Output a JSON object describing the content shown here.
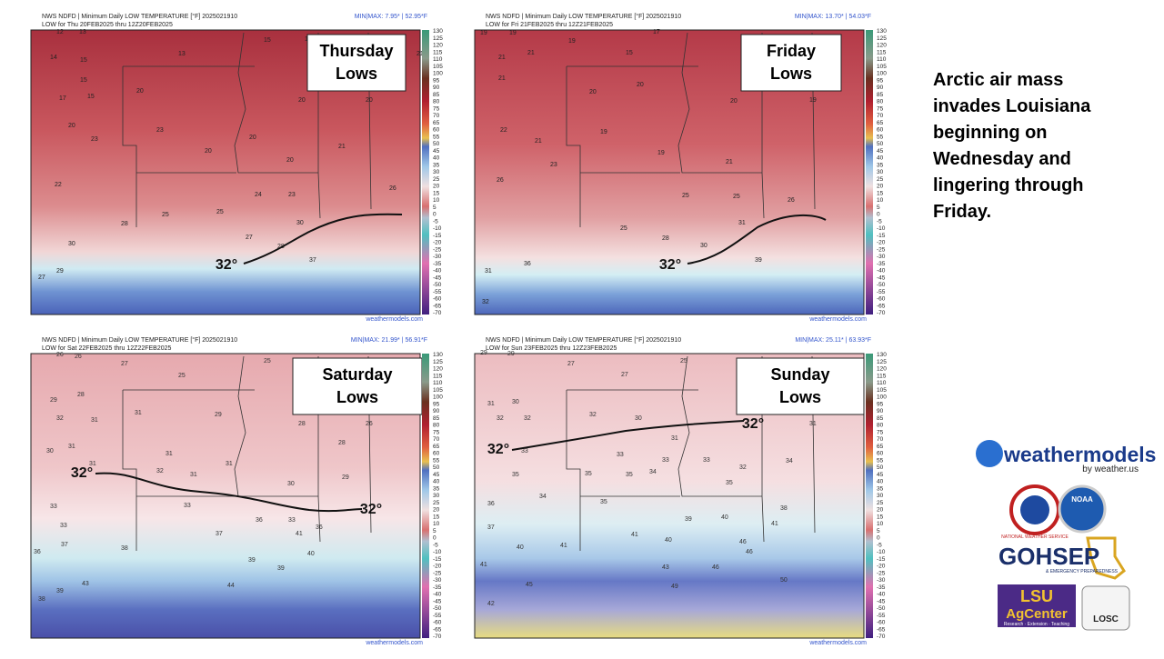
{
  "panels": [
    {
      "header": "NWS NDFD | Minimum Daily LOW TEMPERATURE [°F] 2025021910",
      "subheader": "LOW for Thu 20FEB2025 thru 12Z20FEB2025",
      "minmax": "MIN|MAX: 7.95* | 52.95*F",
      "title": [
        "Thursday",
        "Lows"
      ],
      "contour_labels": [
        "32°"
      ],
      "footer": "weathermodels.com",
      "stations": [
        12,
        13,
        14,
        15,
        15,
        17,
        15,
        13,
        15,
        17,
        21,
        20,
        20,
        20,
        20,
        23,
        23,
        20,
        20,
        21,
        20,
        22,
        24,
        23,
        25,
        25,
        28,
        30,
        28,
        27,
        37,
        27,
        29,
        30,
        26
      ]
    },
    {
      "header": "NWS NDFD | Minimum Daily LOW TEMPERATURE [°F] 2025021910",
      "subheader": "LOW for Fri 21FEB2025 thru 12Z21FEB2025",
      "minmax": "MIN|MAX: 13.70* | 54.03*F",
      "title": [
        "Friday",
        "Lows"
      ],
      "contour_labels": [
        "32°"
      ],
      "footer": "weathermodels.com",
      "stations": [
        19,
        19,
        19,
        17,
        15,
        21,
        21,
        21,
        20,
        20,
        20,
        19,
        22,
        21,
        19,
        19,
        21,
        26,
        23,
        25,
        25,
        26,
        25,
        28,
        30,
        31,
        39,
        31,
        36,
        32
      ]
    },
    {
      "header": "NWS NDFD | Minimum Daily LOW TEMPERATURE [°F] 2025021910",
      "subheader": "LOW for Sat 22FEB2025 thru 12Z22FEB2025",
      "minmax": "MIN|MAX: 21.99* | 56.91*F",
      "title": [
        "Saturday",
        "Lows"
      ],
      "contour_labels": [
        "32°",
        "32°"
      ],
      "footer": "weathermodels.com",
      "stations": [
        26,
        26,
        27,
        25,
        25,
        29,
        28,
        32,
        31,
        31,
        29,
        28,
        26,
        30,
        31,
        31,
        31,
        31,
        28,
        29,
        32,
        31,
        30,
        33,
        36,
        33,
        36,
        33,
        33,
        36,
        37,
        38,
        37,
        41,
        40,
        39,
        39,
        44,
        38,
        39,
        43
      ]
    },
    {
      "header": "NWS NDFD | Minimum Daily LOW TEMPERATURE [°F] 2025021910",
      "subheader": "LOW for Sun 23FEB2025 thru 12Z23FEB2025",
      "minmax": "MIN|MAX: 25.11* | 63.93*F",
      "title": [
        "Sunday",
        "Lows"
      ],
      "contour_labels": [
        "32°",
        "32°"
      ],
      "footer": "weathermodels.com",
      "stations": [
        29,
        29,
        27,
        27,
        25,
        31,
        30,
        32,
        32,
        32,
        30,
        31,
        31,
        33,
        33,
        33,
        33,
        32,
        34,
        35,
        35,
        35,
        34,
        35,
        36,
        34,
        35,
        38,
        39,
        40,
        41,
        37,
        40,
        41,
        41,
        40,
        46,
        46,
        43,
        46,
        50,
        49,
        42,
        45,
        41
      ]
    }
  ],
  "colorbar_labels": [
    130,
    125,
    120,
    115,
    110,
    105,
    100,
    95,
    90,
    85,
    80,
    75,
    70,
    65,
    60,
    55,
    50,
    45,
    40,
    35,
    30,
    25,
    20,
    15,
    10,
    5,
    0,
    -5,
    -10,
    -15,
    -20,
    -25,
    -30,
    -35,
    -40,
    -45,
    -50,
    -55,
    -60,
    -65,
    -70
  ],
  "side_text": "Arctic air mass invades Louisiana beginning on Wednesday and lingering through Friday.",
  "logos": {
    "weathermodels": "weathermodels",
    "weathermodels_sub": "by weather.us",
    "nws": "NATIONAL WEATHER SERVICE",
    "noaa": "NOAA",
    "gohsep": "GOHSEP",
    "gohsep_sub": "& EMERGENCY PREPAREDNESS",
    "lsu": "LSU",
    "agcenter": "AgCenter",
    "agcenter_sub": "Research · Extension · Teaching",
    "losc": "LOSC"
  }
}
